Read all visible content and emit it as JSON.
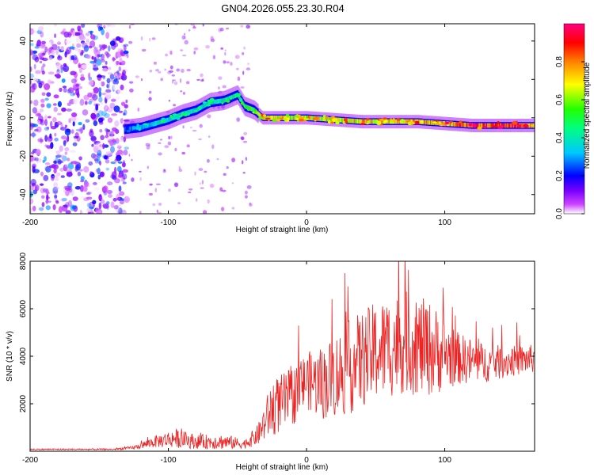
{
  "figure": {
    "title": "GN04.2026.055.23.30.R04"
  },
  "chart_data": [
    {
      "type": "heatmap",
      "name": "spectrogram",
      "xlabel": "Height of straight line (km)",
      "ylabel": "Frequency (Hz)",
      "xlim": [
        -200,
        165
      ],
      "ylim": [
        -50,
        49
      ],
      "xticks": [
        -200,
        -100,
        0,
        100
      ],
      "yticks": [
        -40,
        -20,
        0,
        20,
        40
      ],
      "colorbar": {
        "label": "Normalized spectral amplitude",
        "range": [
          0,
          1
        ],
        "ticks": [
          0.0,
          0.2,
          0.4,
          0.6,
          0.8
        ],
        "colors": [
          "#ffffff",
          "#cc44ff",
          "#7a00ff",
          "#0000ff",
          "#00c8ff",
          "#00ff80",
          "#22ff00",
          "#ffff00",
          "#ff8000",
          "#ff0000",
          "#ff0080"
        ]
      },
      "ridge": [
        {
          "x": -132,
          "y": -6,
          "a": 0.25
        },
        {
          "x": -120,
          "y": -5,
          "a": 0.35
        },
        {
          "x": -110,
          "y": -3,
          "a": 0.4
        },
        {
          "x": -100,
          "y": -1,
          "a": 0.42
        },
        {
          "x": -90,
          "y": 2,
          "a": 0.45
        },
        {
          "x": -80,
          "y": 4,
          "a": 0.45
        },
        {
          "x": -70,
          "y": 8,
          "a": 0.45
        },
        {
          "x": -60,
          "y": 9,
          "a": 0.48
        },
        {
          "x": -50,
          "y": 12,
          "a": 0.5
        },
        {
          "x": -45,
          "y": 6,
          "a": 0.55
        },
        {
          "x": -38,
          "y": 4,
          "a": 0.6
        },
        {
          "x": -32,
          "y": 0,
          "a": 0.75
        },
        {
          "x": -20,
          "y": 0,
          "a": 0.7
        },
        {
          "x": 0,
          "y": 0,
          "a": 0.7
        },
        {
          "x": 20,
          "y": -1,
          "a": 0.72
        },
        {
          "x": 40,
          "y": -2,
          "a": 0.78
        },
        {
          "x": 60,
          "y": -2,
          "a": 0.78
        },
        {
          "x": 80,
          "y": -2,
          "a": 0.8
        },
        {
          "x": 100,
          "y": -3,
          "a": 0.82
        },
        {
          "x": 120,
          "y": -4,
          "a": 0.92
        },
        {
          "x": 150,
          "y": -4,
          "a": 0.95
        },
        {
          "x": 165,
          "y": -4,
          "a": 0.8
        }
      ],
      "noise_region": {
        "x_from": -200,
        "x_to": -130,
        "f_from": -50,
        "f_to": 49,
        "max_amplitude": 0.3
      }
    },
    {
      "type": "line",
      "name": "snr",
      "xlabel": "Height of straight line (km)",
      "ylabel": "SNR (10 * v/v)",
      "xlim": [
        -200,
        165
      ],
      "ylim": [
        0,
        8000
      ],
      "xticks": [
        -200,
        -100,
        0,
        100
      ],
      "yticks": [
        2000,
        4000,
        6000,
        8000
      ],
      "color": "#ee2222",
      "envelope": [
        {
          "x": -200,
          "mean": 80,
          "spread": 60
        },
        {
          "x": -140,
          "mean": 80,
          "spread": 60
        },
        {
          "x": -125,
          "mean": 150,
          "spread": 150
        },
        {
          "x": -110,
          "mean": 400,
          "spread": 500
        },
        {
          "x": -95,
          "mean": 550,
          "spread": 800
        },
        {
          "x": -80,
          "mean": 400,
          "spread": 600
        },
        {
          "x": -60,
          "mean": 400,
          "spread": 650
        },
        {
          "x": -45,
          "mean": 300,
          "spread": 400
        },
        {
          "x": -35,
          "mean": 700,
          "spread": 900
        },
        {
          "x": -25,
          "mean": 1800,
          "spread": 2400
        },
        {
          "x": -10,
          "mean": 2300,
          "spread": 2500
        },
        {
          "x": 0,
          "mean": 3000,
          "spread": 2400
        },
        {
          "x": 10,
          "mean": 2800,
          "spread": 3000
        },
        {
          "x": 30,
          "mean": 3500,
          "spread": 4000
        },
        {
          "x": 50,
          "mean": 4200,
          "spread": 4200
        },
        {
          "x": 70,
          "mean": 4600,
          "spread": 4400
        },
        {
          "x": 90,
          "mean": 4300,
          "spread": 4000
        },
        {
          "x": 110,
          "mean": 3900,
          "spread": 2200
        },
        {
          "x": 130,
          "mean": 3700,
          "spread": 1600
        },
        {
          "x": 150,
          "mean": 3800,
          "spread": 1300
        },
        {
          "x": 165,
          "mean": 3900,
          "spread": 1200
        }
      ]
    }
  ]
}
